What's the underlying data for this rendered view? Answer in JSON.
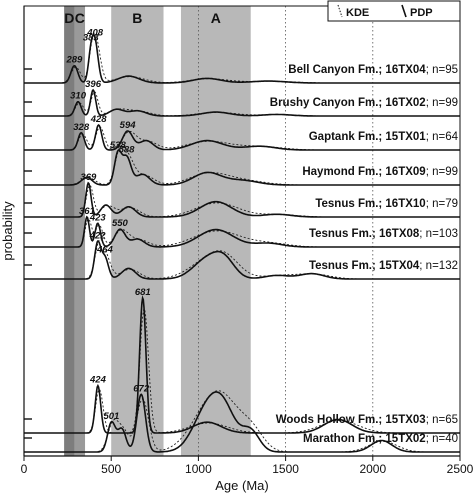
{
  "chart_data": {
    "type": "line",
    "xlabel": "Age (Ma)",
    "ylabel": "probability",
    "xlim": [
      0,
      2500
    ],
    "x_ticks": [
      0,
      500,
      1000,
      1500,
      2000,
      2500
    ],
    "gridlines_x": [
      1000,
      1500,
      2000
    ],
    "gridline_style": "dotted vertical",
    "zones": [
      {
        "label": "D",
        "x0": 230,
        "x1": 290,
        "shade": "dark"
      },
      {
        "label": "C",
        "x0": 290,
        "x1": 350,
        "shade": "medium"
      },
      {
        "label": "B",
        "x0": 500,
        "x1": 800,
        "shade": "light"
      },
      {
        "label": "A",
        "x0": 900,
        "x1": 1300,
        "shade": "light"
      }
    ],
    "legend": {
      "placement": "top-right",
      "entries": [
        {
          "name": "KDE",
          "style": "dotted"
        },
        {
          "name": "PDP",
          "style": "solid"
        }
      ]
    },
    "series": [
      {
        "formation": "Bell Canyon Fm.;",
        "sample": "16TX04",
        "n_text": "; n=95",
        "peak_labels": [
          {
            "age": 289,
            "text": "289"
          },
          {
            "age": 383,
            "text": "383"
          },
          {
            "age": 408,
            "text": "408"
          }
        ],
        "components": [
          [
            289,
            20,
            0.45
          ],
          [
            383,
            15,
            0.65
          ],
          [
            408,
            18,
            1.0
          ],
          [
            600,
            60,
            0.18
          ],
          [
            1050,
            80,
            0.12
          ],
          [
            1400,
            100,
            0.05
          ]
        ]
      },
      {
        "formation": "Brushy Canyon Fm.;",
        "sample": "16TX02",
        "n_text": "; n=99",
        "peak_labels": [
          {
            "age": 310,
            "text": "310"
          },
          {
            "age": 396,
            "text": "396"
          }
        ],
        "components": [
          [
            310,
            18,
            0.55
          ],
          [
            396,
            15,
            1.0
          ],
          [
            530,
            40,
            0.25
          ],
          [
            650,
            50,
            0.2
          ],
          [
            1100,
            80,
            0.15
          ],
          [
            1450,
            80,
            0.06
          ]
        ]
      },
      {
        "formation": "Gaptank Fm.;",
        "sample": "15TX01",
        "n_text": "; n=64",
        "peak_labels": [
          {
            "age": 328,
            "text": "328"
          },
          {
            "age": 428,
            "text": "428"
          },
          {
            "age": 594,
            "text": "594"
          }
        ],
        "components": [
          [
            328,
            18,
            0.55
          ],
          [
            428,
            18,
            0.8
          ],
          [
            594,
            30,
            0.6
          ],
          [
            700,
            40,
            0.3
          ],
          [
            1050,
            90,
            0.3
          ],
          [
            1350,
            90,
            0.12
          ]
        ]
      },
      {
        "formation": "Haymond Fm.;",
        "sample": "16TX09",
        "n_text": "; n=99",
        "peak_labels": [
          {
            "age": 538,
            "text": "538"
          },
          {
            "age": 588,
            "text": "588"
          }
        ],
        "components": [
          [
            360,
            30,
            0.25
          ],
          [
            538,
            20,
            1.0
          ],
          [
            588,
            25,
            0.9
          ],
          [
            680,
            40,
            0.35
          ],
          [
            1050,
            80,
            0.4
          ],
          [
            1250,
            90,
            0.15
          ]
        ]
      },
      {
        "formation": "Tesnus Fm.;",
        "sample": "16TX10",
        "n_text": "; n=79",
        "peak_labels": [
          {
            "age": 369,
            "text": "369"
          }
        ],
        "components": [
          [
            369,
            15,
            1.0
          ],
          [
            470,
            30,
            0.35
          ],
          [
            600,
            40,
            0.3
          ],
          [
            1100,
            90,
            0.45
          ],
          [
            1450,
            80,
            0.08
          ]
        ]
      },
      {
        "formation": "Tesnus Fm.;",
        "sample": "16TX08",
        "n_text": "; n=103",
        "peak_labels": [
          {
            "age": 361,
            "text": "361"
          },
          {
            "age": 423,
            "text": "423"
          },
          {
            "age": 550,
            "text": "550"
          }
        ],
        "components": [
          [
            361,
            14,
            0.95
          ],
          [
            423,
            16,
            0.75
          ],
          [
            550,
            30,
            0.55
          ],
          [
            650,
            40,
            0.25
          ],
          [
            1100,
            100,
            0.55
          ],
          [
            1400,
            80,
            0.12
          ]
        ]
      },
      {
        "formation": "Tesnus Fm.;",
        "sample": "15TX04",
        "n_text": "; n=132",
        "peak_labels": [
          {
            "age": 422,
            "text": "422"
          },
          {
            "age": 464,
            "text": "464"
          }
        ],
        "components": [
          [
            422,
            18,
            1.0
          ],
          [
            464,
            20,
            0.6
          ],
          [
            600,
            40,
            0.3
          ],
          [
            1050,
            80,
            0.55
          ],
          [
            1150,
            60,
            0.45
          ],
          [
            1450,
            70,
            0.1
          ],
          [
            1650,
            70,
            0.15
          ]
        ]
      },
      {
        "formation": "Woods Hollow Fm.;",
        "sample": "15TX03",
        "n_text": "; n=65",
        "peak_labels": [
          {
            "age": 424,
            "text": "424"
          },
          {
            "age": 681,
            "text": "681"
          }
        ],
        "components": [
          [
            424,
            16,
            0.35
          ],
          [
            681,
            18,
            1.0
          ],
          [
            1050,
            80,
            0.08
          ],
          [
            1800,
            80,
            0.1
          ]
        ]
      },
      {
        "formation": "Marathon Fm.;",
        "sample": "15TX02",
        "n_text": "; n=40",
        "peak_labels": [
          {
            "age": 501,
            "text": "501"
          },
          {
            "age": 672,
            "text": "672"
          }
        ],
        "components": [
          [
            501,
            22,
            0.5
          ],
          [
            560,
            25,
            0.4
          ],
          [
            672,
            25,
            1.0
          ],
          [
            1050,
            80,
            0.7
          ],
          [
            1150,
            70,
            0.6
          ],
          [
            1300,
            50,
            0.35
          ],
          [
            2050,
            60,
            0.2
          ]
        ]
      }
    ]
  }
}
